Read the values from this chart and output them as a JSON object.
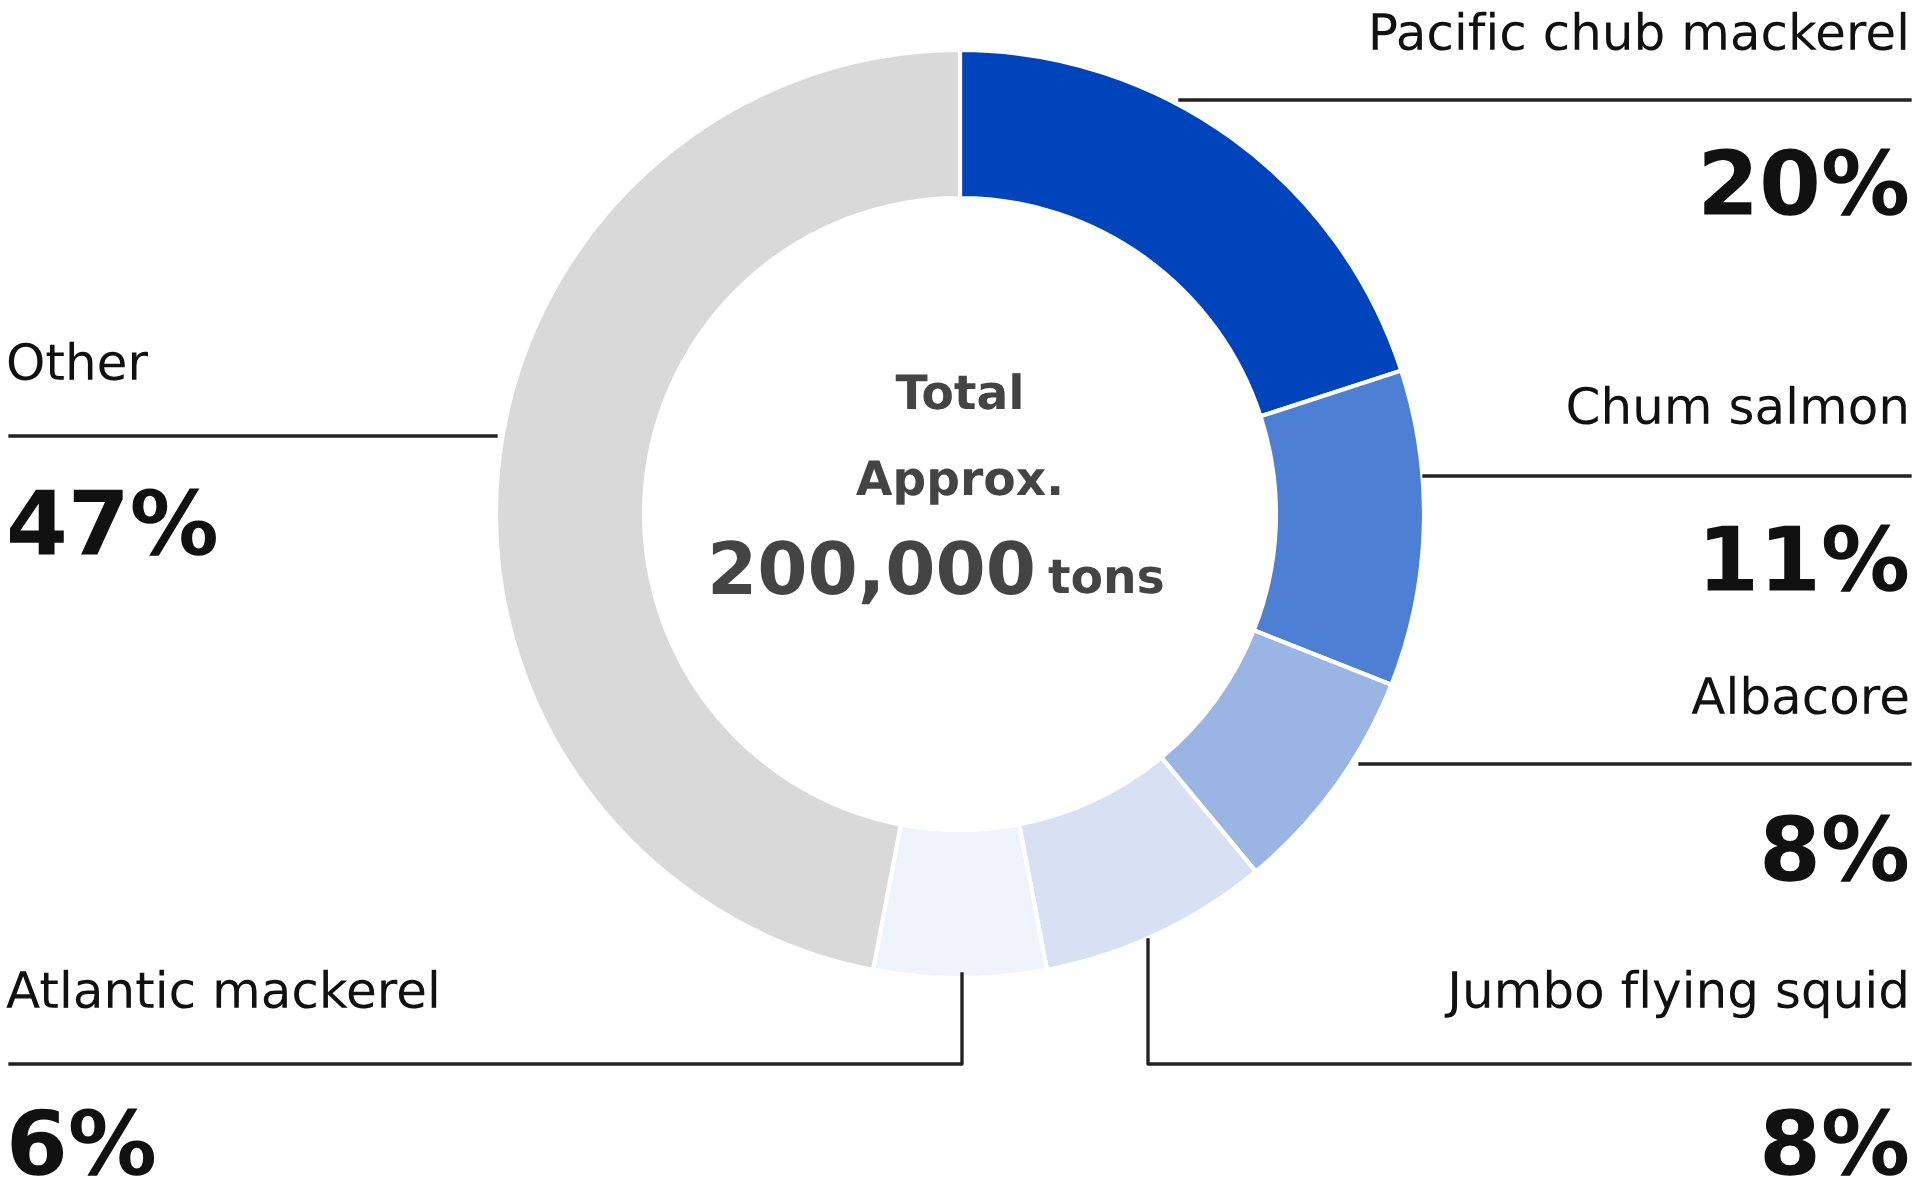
{
  "chart_data": {
    "type": "donut",
    "categories": [
      "Pacific chub mackerel",
      "Chum salmon",
      "Albacore",
      "Jumbo flying squid",
      "Atlantic mackerel",
      "Other"
    ],
    "values": [
      20,
      11,
      8,
      8,
      6,
      47
    ],
    "colors": [
      "#0044bb",
      "#4d7fd4",
      "#9ab4e4",
      "#d7e1f3",
      "#eef3fc",
      "#d9d9d9"
    ],
    "value_labels": [
      "20%",
      "11%",
      "8%",
      "8%",
      "6%",
      "47%"
    ],
    "annotations": [
      "Total",
      "Approx.",
      "200,000",
      "tons"
    ],
    "legend": false
  }
}
